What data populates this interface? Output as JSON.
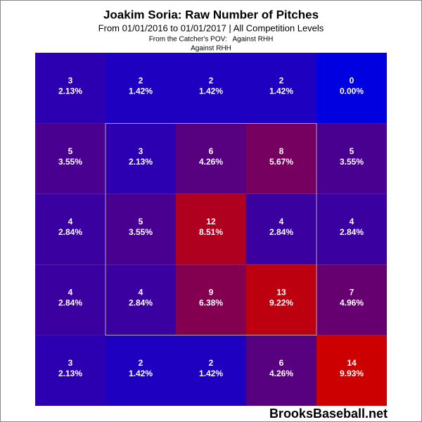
{
  "chart_data": {
    "type": "heatmap",
    "title": "Joakim Soria: Raw Number of Pitches",
    "subtitle": "From 01/01/2016 to 01/01/2017 | All Competition Levels",
    "notes": [
      "From the Catcher's POV:   Against RHH",
      "Against RHH"
    ],
    "watermark": "BrooksBaseball.net",
    "color_low": "#0000e0",
    "color_high": "#cc0000",
    "counts": [
      [
        3,
        2,
        2,
        2,
        0
      ],
      [
        5,
        3,
        6,
        8,
        5
      ],
      [
        4,
        5,
        12,
        4,
        4
      ],
      [
        4,
        4,
        9,
        13,
        7
      ],
      [
        3,
        2,
        2,
        6,
        14
      ]
    ],
    "percents": [
      [
        2.13,
        1.42,
        1.42,
        1.42,
        0.0
      ],
      [
        3.55,
        2.13,
        4.26,
        5.67,
        3.55
      ],
      [
        2.84,
        3.55,
        8.51,
        2.84,
        2.84
      ],
      [
        2.84,
        2.84,
        6.38,
        9.22,
        4.96
      ],
      [
        2.13,
        1.42,
        1.42,
        4.26,
        9.93
      ]
    ],
    "value_labels": [
      [
        "2.13%",
        "1.42%",
        "1.42%",
        "1.42%",
        "0.00%"
      ],
      [
        "3.55%",
        "2.13%",
        "4.26%",
        "5.67%",
        "3.55%"
      ],
      [
        "2.84%",
        "3.55%",
        "8.51%",
        "2.84%",
        "2.84%"
      ],
      [
        "2.84%",
        "2.84%",
        "6.38%",
        "9.22%",
        "4.96%"
      ],
      [
        "2.13%",
        "1.42%",
        "1.42%",
        "4.26%",
        "9.93%"
      ]
    ]
  }
}
